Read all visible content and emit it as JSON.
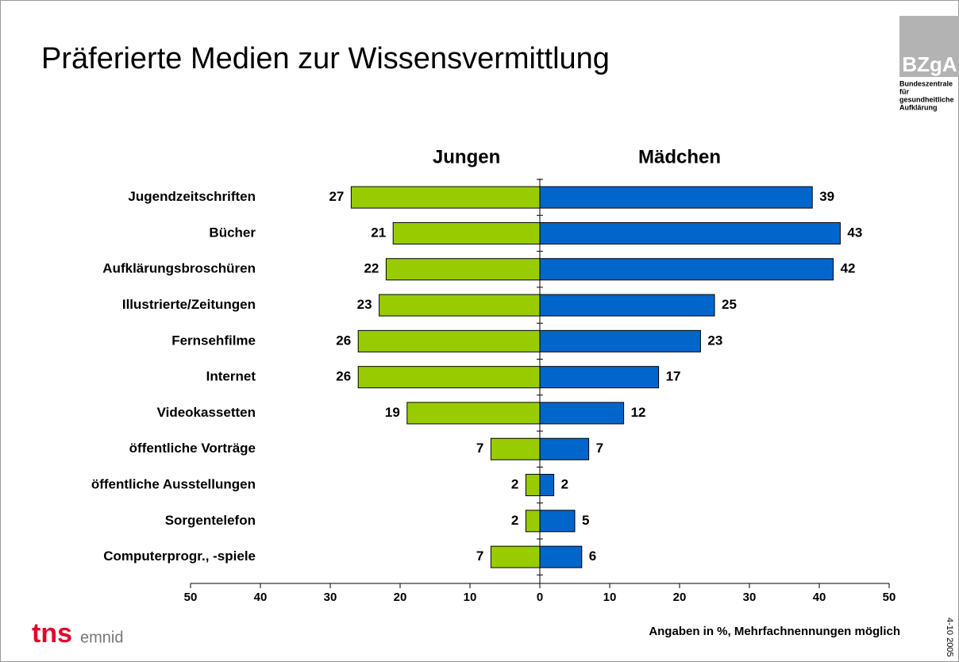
{
  "chart_data": {
    "type": "butterfly-bar",
    "title": "Präferierte Medien zur Wissensvermittlung",
    "categories": [
      "Jugendzeitschriften",
      "Bücher",
      "Aufklärungsbroschüren",
      "Illustrierte/Zeitungen",
      "Fernsehfilme",
      "Internet",
      "Videokassetten",
      "öffentliche Vorträge",
      "öffentliche Ausstellungen",
      "Sorgentelefon",
      "Computerprogr., -spiele"
    ],
    "series": [
      {
        "name": "Jungen",
        "color": "#99cc00",
        "side": "left",
        "values": [
          27,
          21,
          22,
          23,
          26,
          26,
          19,
          7,
          2,
          2,
          7
        ]
      },
      {
        "name": "Mädchen",
        "color": "#0066cc",
        "side": "right",
        "values": [
          39,
          43,
          42,
          25,
          23,
          17,
          12,
          7,
          2,
          5,
          6
        ]
      }
    ],
    "xlim": [
      -50,
      50
    ],
    "xticks": [
      {
        "value": -50,
        "label": "50"
      },
      {
        "value": -40,
        "label": "40"
      },
      {
        "value": -30,
        "label": "30"
      },
      {
        "value": -20,
        "label": "20"
      },
      {
        "value": -10,
        "label": "10"
      },
      0,
      10,
      20,
      30,
      40,
      50
    ],
    "note": "Angaben in %,  Mehrfachnennungen möglich"
  },
  "branding": {
    "bzga": "BZgA",
    "bzga_lines": [
      "Bundeszentrale",
      "für",
      "gesundheitliche",
      "Aufklärung"
    ],
    "tns": "tns",
    "emnid": "emnid",
    "code": "4-10 2005"
  }
}
